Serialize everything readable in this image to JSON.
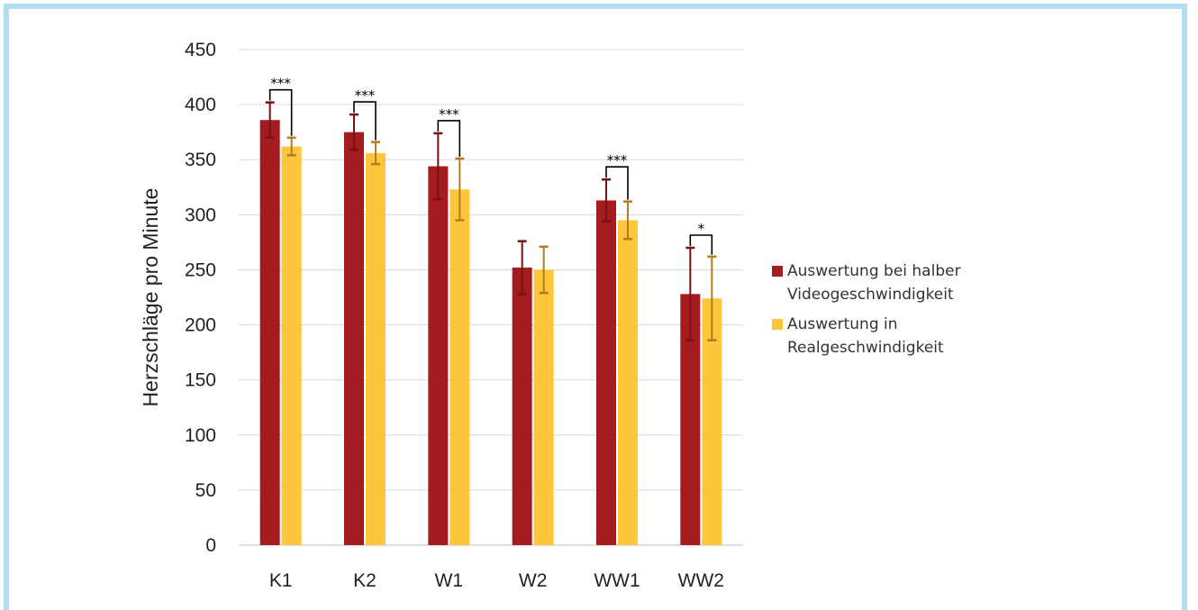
{
  "chart_data": {
    "type": "bar",
    "categories": [
      "K1",
      "K2",
      "W1",
      "W2",
      "WW1",
      "WW2"
    ],
    "ylabel": "Herzschläge pro Minute",
    "xlabel": "",
    "ylim": [
      0,
      450
    ],
    "yticks": [
      0,
      50,
      100,
      150,
      200,
      250,
      300,
      350,
      400,
      450
    ],
    "grid": true,
    "legend_position": "right",
    "series": [
      {
        "name": "Auswertung bei halber Videogeschwindigkeit",
        "color": "#a51c20",
        "error_color": "#7a1014",
        "values": [
          386,
          375,
          344,
          252,
          313,
          228
        ],
        "errors": [
          16,
          16,
          30,
          24,
          19,
          42
        ]
      },
      {
        "name": "Auswertung in Realgeschwindigkeit",
        "color": "#fdc63d",
        "error_color": "#b57c1e",
        "values": [
          362,
          356,
          323,
          250,
          295,
          224
        ],
        "errors": [
          8,
          10,
          28,
          21,
          17,
          38
        ]
      }
    ],
    "annotations": [
      {
        "category": "K1",
        "text": "***"
      },
      {
        "category": "K2",
        "text": "***"
      },
      {
        "category": "W1",
        "text": "***"
      },
      {
        "category": "WW1",
        "text": "***"
      },
      {
        "category": "WW2",
        "text": "*"
      }
    ]
  }
}
